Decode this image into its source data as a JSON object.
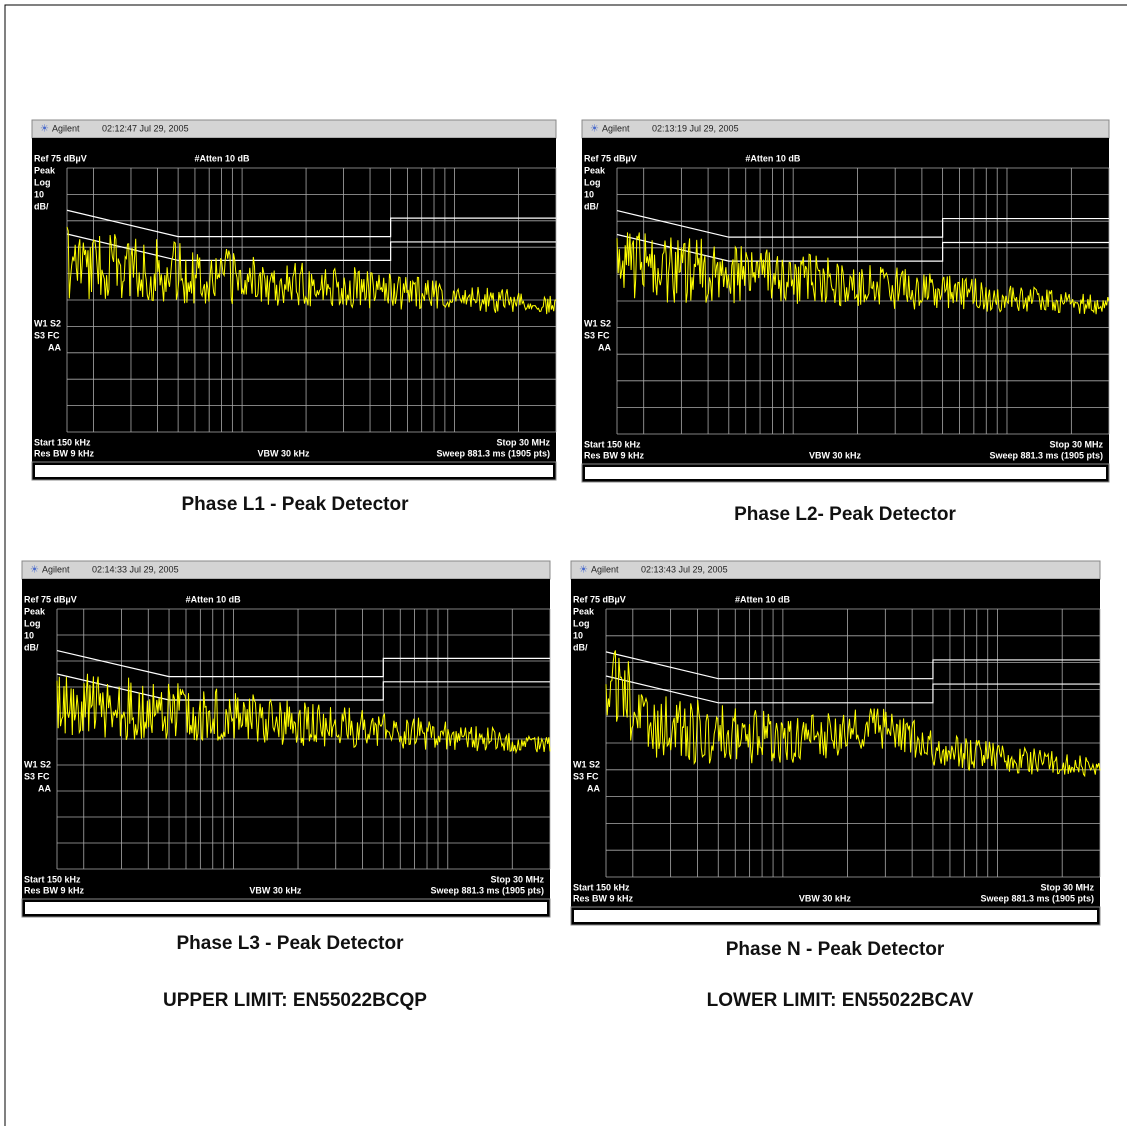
{
  "panels": [
    {
      "header": {
        "brand": "Agilent",
        "timestamp": "02:12:47  Jul 29, 2005"
      },
      "ref": "Ref 75 dBµV",
      "atten": "#Atten 10 dB",
      "side_labels": [
        "Peak",
        "Log",
        "10",
        "dB/"
      ],
      "status_labels": [
        "W1  S2",
        "S3  FC",
        "AA"
      ],
      "start": "Start 150 kHz",
      "stop": "Stop 30 MHz",
      "res_bw": "Res BW 9 kHz",
      "vbw": "VBW 30 kHz",
      "sweep": "Sweep 881.3 ms (1905 pts)",
      "caption": "Phase L1 - Peak Detector"
    },
    {
      "header": {
        "brand": "Agilent",
        "timestamp": "02:13:19  Jul 29, 2005"
      },
      "ref": "Ref 75 dBµV",
      "atten": "#Atten 10 dB",
      "side_labels": [
        "Peak",
        "Log",
        "10",
        "dB/"
      ],
      "status_labels": [
        "W1  S2",
        "S3  FC",
        "AA"
      ],
      "start": "Start 150 kHz",
      "stop": "Stop 30 MHz",
      "res_bw": "Res BW 9 kHz",
      "vbw": "VBW 30 kHz",
      "sweep": "Sweep 881.3 ms (1905 pts)",
      "caption": "Phase L2- Peak Detector"
    },
    {
      "header": {
        "brand": "Agilent",
        "timestamp": "02:14:33  Jul 29, 2005"
      },
      "ref": "Ref 75 dBµV",
      "atten": "#Atten 10 dB",
      "side_labels": [
        "Peak",
        "Log",
        "10",
        "dB/"
      ],
      "status_labels": [
        "W1  S2",
        "S3  FC",
        "AA"
      ],
      "start": "Start 150 kHz",
      "stop": "Stop 30 MHz",
      "res_bw": "Res BW 9 kHz",
      "vbw": "VBW 30 kHz",
      "sweep": "Sweep 881.3 ms (1905 pts)",
      "caption": "Phase L3 - Peak Detector"
    },
    {
      "header": {
        "brand": "Agilent",
        "timestamp": "02:13:43  Jul 29, 2005"
      },
      "ref": "Ref 75 dBµV",
      "atten": "#Atten 10 dB",
      "side_labels": [
        "Peak",
        "Log",
        "10",
        "dB/"
      ],
      "status_labels": [
        "W1  S2",
        "S3  FC",
        "AA"
      ],
      "start": "Start 150 kHz",
      "stop": "Stop 30 MHz",
      "res_bw": "Res BW 9 kHz",
      "vbw": "VBW 30 kHz",
      "sweep": "Sweep 881.3 ms (1905 pts)",
      "caption": "Phase N - Peak Detector"
    }
  ],
  "limits": [
    "UPPER LIMIT: EN55022BCQP",
    "LOWER LIMIT: EN55022BCAV"
  ]
}
